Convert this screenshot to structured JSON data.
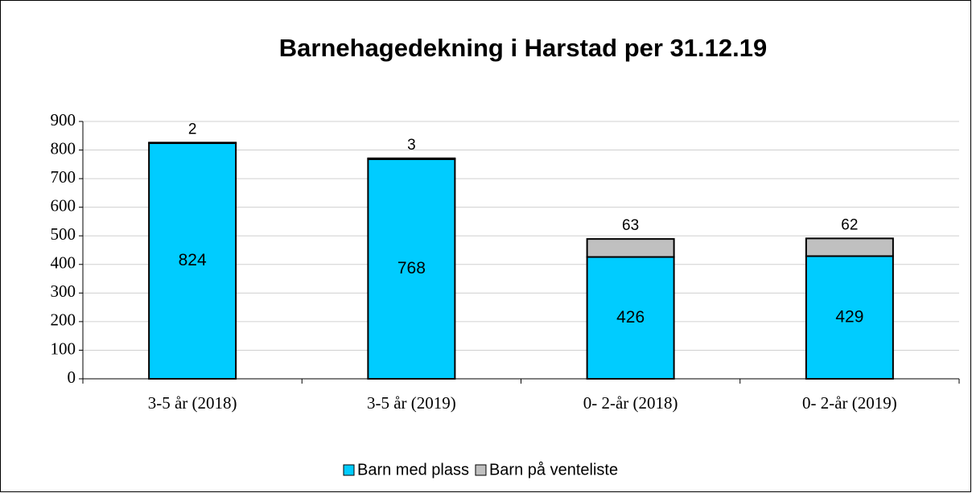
{
  "chart_data": {
    "type": "stacked_bar",
    "title": "Barnehagedekning i Harstad per 31.12.19",
    "categories": [
      "3-5 år (2018)",
      "3-5 år (2019)",
      "0- 2-år (2018)",
      "0- 2-år (2019)"
    ],
    "series": [
      {
        "name": "Barn med plass",
        "color": "#00ccff",
        "values": [
          824,
          768,
          426,
          429
        ]
      },
      {
        "name": "Barn på venteliste",
        "color": "#c0c0c0",
        "values": [
          2,
          3,
          63,
          62
        ]
      }
    ],
    "ylim": [
      0,
      900
    ],
    "yticks": [
      0,
      100,
      200,
      300,
      400,
      500,
      600,
      700,
      800,
      900
    ],
    "grid": true,
    "legend": "bottom"
  }
}
